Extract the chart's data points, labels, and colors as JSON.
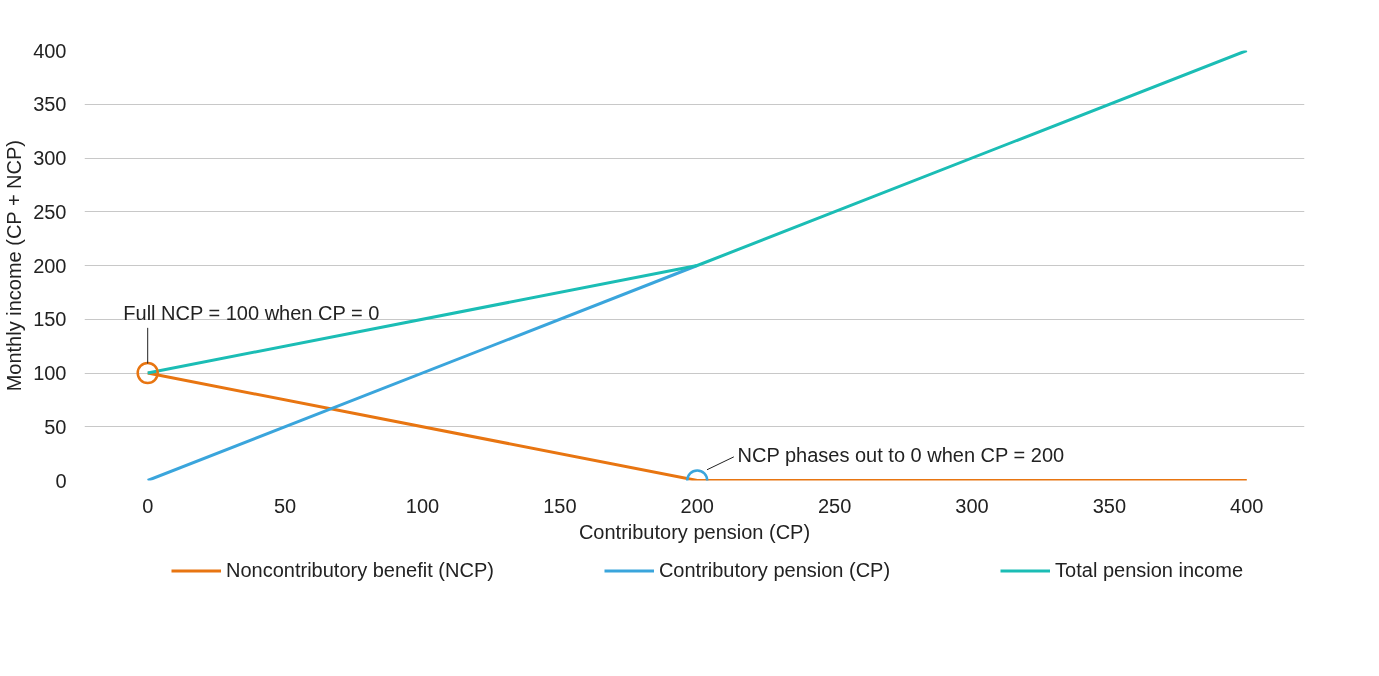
{
  "chart_data": {
    "type": "line",
    "xlabel": "Contributory pension (CP)",
    "ylabel": "Monthly income (CP + NCP)",
    "series": [
      {
        "name": "Noncontributory benefit (NCP)",
        "color": "#e87511",
        "x": [
          0,
          200,
          400
        ],
        "values": [
          100,
          0,
          0
        ]
      },
      {
        "name": "Contributory pension (CP)",
        "color": "#3aa5dc",
        "x": [
          0,
          200
        ],
        "values": [
          0,
          200
        ]
      },
      {
        "name": "Total pension income",
        "color": "#1bbdb5",
        "x": [
          0,
          200,
          400
        ],
        "values": [
          100,
          200,
          400
        ]
      }
    ],
    "annotations": [
      {
        "text": "Full NCP = 100 when CP = 0",
        "x": 0,
        "y": 100
      },
      {
        "text": "NCP phases out to 0 when CP = 200",
        "x": 200,
        "y": 0
      }
    ],
    "xlim": [
      -23,
      421
    ],
    "ylim": [
      0,
      400
    ],
    "xticks": [
      0,
      50,
      100,
      150,
      200,
      250,
      300,
      350,
      400
    ],
    "yticks": [
      0,
      50,
      100,
      150,
      200,
      250,
      300,
      350,
      400
    ],
    "grid": "y",
    "legend": "bottom",
    "line_style": "solid"
  }
}
